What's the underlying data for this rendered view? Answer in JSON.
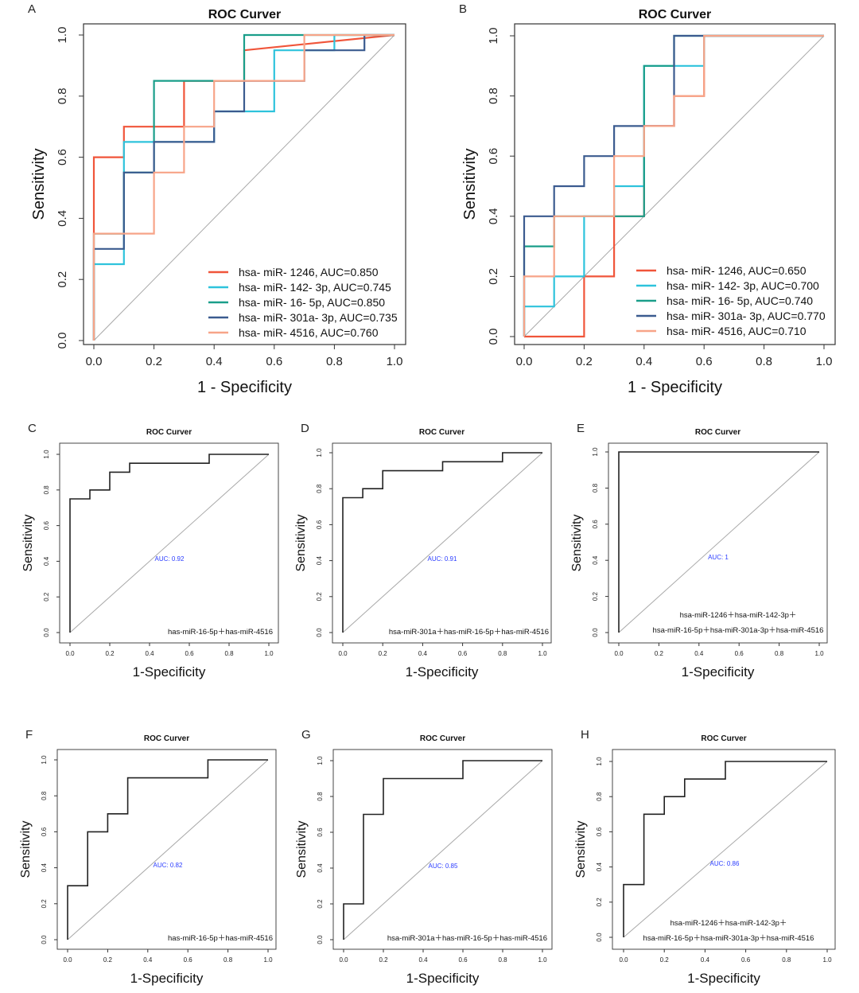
{
  "chart_data": [
    {
      "panel": "A",
      "type": "line",
      "title": "ROC Curver",
      "xlabel": "1 -  Specificity",
      "ylabel": "Sensitivity",
      "xlim": [
        0,
        1
      ],
      "ylim": [
        0,
        1
      ],
      "xticks": [
        "0.0",
        "0.2",
        "0.4",
        "0.6",
        "0.8",
        "1.0"
      ],
      "yticks": [
        "0.0",
        "0.2",
        "0.4",
        "0.6",
        "0.8",
        "1.0"
      ],
      "legend_position": "bottom-right",
      "series": [
        {
          "name": "hsa- miR- 1246, AUC=0.850",
          "color": "#f0553a",
          "x": [
            0,
            0,
            0.1,
            0.1,
            0.3,
            0.3,
            0.5,
            0.5,
            1
          ],
          "y": [
            0,
            0.6,
            0.6,
            0.7,
            0.7,
            0.85,
            0.85,
            0.95,
            1
          ]
        },
        {
          "name": "hsa- miR- 142- 3p, AUC=0.745",
          "color": "#2ec3dc",
          "x": [
            0,
            0,
            0.1,
            0.1,
            0.4,
            0.4,
            0.6,
            0.6,
            0.8,
            0.8,
            1
          ],
          "y": [
            0,
            0.25,
            0.25,
            0.65,
            0.65,
            0.75,
            0.75,
            0.95,
            0.95,
            1,
            1
          ]
        },
        {
          "name": "hsa- miR- 16- 5p, AUC=0.850",
          "color": "#1a9e8a",
          "x": [
            0,
            0,
            0.1,
            0.1,
            0.2,
            0.2,
            0.5,
            0.5,
            1
          ],
          "y": [
            0,
            0.35,
            0.35,
            0.55,
            0.55,
            0.85,
            0.85,
            1,
            1
          ]
        },
        {
          "name": "hsa- miR- 301a- 3p, AUC=0.735",
          "color": "#3b5b8f",
          "x": [
            0,
            0,
            0.1,
            0.1,
            0.2,
            0.2,
            0.4,
            0.4,
            0.5,
            0.5,
            0.7,
            0.7,
            0.9,
            0.9,
            1
          ],
          "y": [
            0,
            0.3,
            0.3,
            0.55,
            0.55,
            0.65,
            0.65,
            0.75,
            0.75,
            0.85,
            0.85,
            0.95,
            0.95,
            1,
            1
          ]
        },
        {
          "name": "hsa- miR- 4516, AUC=0.760",
          "color": "#f7a488",
          "x": [
            0,
            0,
            0.2,
            0.2,
            0.3,
            0.3,
            0.4,
            0.4,
            0.7,
            0.7,
            1
          ],
          "y": [
            0,
            0.35,
            0.35,
            0.55,
            0.55,
            0.7,
            0.7,
            0.85,
            0.85,
            1,
            1
          ]
        }
      ]
    },
    {
      "panel": "B",
      "type": "line",
      "title": "ROC Curver",
      "xlabel": "1 -  Specificity",
      "ylabel": "Sensitivity",
      "xlim": [
        0,
        1
      ],
      "ylim": [
        0,
        1
      ],
      "xticks": [
        "0.0",
        "0.2",
        "0.4",
        "0.6",
        "0.8",
        "1.0"
      ],
      "yticks": [
        "0.0",
        "0.2",
        "0.4",
        "0.6",
        "0.8",
        "1.0"
      ],
      "legend_position": "bottom-right",
      "series": [
        {
          "name": "hsa- miR- 1246, AUC=0.650",
          "color": "#f0553a",
          "x": [
            0,
            0.2,
            0.2,
            0.3,
            0.3,
            0.4,
            0.4,
            0.5,
            0.5,
            0.6,
            0.6,
            1
          ],
          "y": [
            0,
            0,
            0.2,
            0.2,
            0.4,
            0.4,
            0.7,
            0.7,
            0.8,
            0.8,
            1,
            1
          ]
        },
        {
          "name": "hsa- miR- 142- 3p, AUC=0.700",
          "color": "#2ec3dc",
          "x": [
            0,
            0,
            0.1,
            0.1,
            0.2,
            0.2,
            0.3,
            0.3,
            0.4,
            0.4,
            0.5,
            0.5,
            0.6,
            0.6,
            1
          ],
          "y": [
            0,
            0.1,
            0.1,
            0.2,
            0.2,
            0.4,
            0.4,
            0.5,
            0.5,
            0.9,
            0.9,
            0.9,
            0.9,
            1,
            1
          ]
        },
        {
          "name": "hsa- miR- 16- 5p, AUC=0.740",
          "color": "#1a9e8a",
          "x": [
            0,
            0,
            0.1,
            0.1,
            0.3,
            0.3,
            0.4,
            0.4,
            0.5,
            0.5,
            0.6,
            1
          ],
          "y": [
            0,
            0.3,
            0.3,
            0.4,
            0.4,
            0.4,
            0.4,
            0.9,
            0.9,
            1,
            1,
            1
          ]
        },
        {
          "name": "hsa- miR- 301a- 3p, AUC=0.770",
          "color": "#3b5b8f",
          "x": [
            0,
            0,
            0.1,
            0.1,
            0.2,
            0.2,
            0.3,
            0.3,
            0.4,
            0.4,
            0.5,
            0.5,
            1
          ],
          "y": [
            0,
            0.4,
            0.4,
            0.5,
            0.5,
            0.6,
            0.6,
            0.7,
            0.7,
            0.7,
            0.7,
            1,
            1
          ]
        },
        {
          "name": "hsa- miR- 4516, AUC=0.710",
          "color": "#f7a488",
          "x": [
            0,
            0,
            0.1,
            0.1,
            0.3,
            0.3,
            0.4,
            0.4,
            0.5,
            0.5,
            0.6,
            0.6,
            1
          ],
          "y": [
            0,
            0.2,
            0.2,
            0.4,
            0.4,
            0.6,
            0.6,
            0.7,
            0.7,
            0.8,
            0.8,
            1,
            1
          ]
        }
      ]
    },
    {
      "panel": "C",
      "type": "line",
      "title": "ROC Curver",
      "xlabel": "1-Specificity",
      "ylabel": "Sensitivity",
      "xticks": [
        "0.0",
        "0.2",
        "0.4",
        "0.6",
        "0.8",
        "1.0"
      ],
      "yticks": [
        "0.0",
        "0.2",
        "0.4",
        "0.6",
        "0.8",
        "1.0"
      ],
      "auc_label": "AUC: 0.92",
      "annotation": [
        "has-miR-16-5p＋has-miR-4516"
      ],
      "series": [
        {
          "color": "#222222",
          "x": [
            0,
            0,
            0.1,
            0.1,
            0.2,
            0.2,
            0.3,
            0.3,
            0.7,
            0.7,
            1
          ],
          "y": [
            0,
            0.75,
            0.75,
            0.8,
            0.8,
            0.9,
            0.9,
            0.95,
            0.95,
            1,
            1
          ]
        }
      ]
    },
    {
      "panel": "D",
      "type": "line",
      "title": "ROC Curver",
      "xlabel": "1-Specificity",
      "ylabel": "Sensitivity",
      "xticks": [
        "0.0",
        "0.2",
        "0.4",
        "0.6",
        "0.8",
        "1.0"
      ],
      "yticks": [
        "0.0",
        "0.2",
        "0.4",
        "0.6",
        "0.8",
        "1.0"
      ],
      "auc_label": "AUC: 0.91",
      "annotation": [
        "hsa-miR-301a＋has-miR-16-5p＋has-miR-4516"
      ],
      "series": [
        {
          "color": "#222222",
          "x": [
            0,
            0,
            0.1,
            0.1,
            0.2,
            0.2,
            0.5,
            0.5,
            0.8,
            0.8,
            1
          ],
          "y": [
            0,
            0.75,
            0.75,
            0.8,
            0.8,
            0.9,
            0.9,
            0.95,
            0.95,
            1,
            1
          ]
        }
      ]
    },
    {
      "panel": "E",
      "type": "line",
      "title": "ROC Curver",
      "xlabel": "1-Specificity",
      "ylabel": "Sensitivity",
      "xticks": [
        "0.0",
        "0.2",
        "0.4",
        "0.6",
        "0.8",
        "1.0"
      ],
      "yticks": [
        "0.0",
        "0.2",
        "0.4",
        "0.6",
        "0.8",
        "1.0"
      ],
      "auc_label": "AUC: 1",
      "annotation": [
        "hsa-miR-1246＋hsa-miR-142-3p＋",
        "hsa-miR-16-5p＋hsa-miR-301a-3p＋hsa-miR-4516"
      ],
      "series": [
        {
          "color": "#222222",
          "x": [
            0,
            0,
            1
          ],
          "y": [
            0,
            1,
            1
          ]
        }
      ]
    },
    {
      "panel": "F",
      "type": "line",
      "title": "ROC Curver",
      "xlabel": "1-Specificity",
      "ylabel": "Sensitivity",
      "xticks": [
        "0.0",
        "0.2",
        "0.4",
        "0.6",
        "0.8",
        "1.0"
      ],
      "yticks": [
        "0.0",
        "0.2",
        "0.4",
        "0.6",
        "0.8",
        "1.0"
      ],
      "auc_label": "AUC: 0.82",
      "annotation": [
        "has-miR-16-5p＋has-miR-4516"
      ],
      "series": [
        {
          "color": "#222222",
          "x": [
            0,
            0,
            0.1,
            0.1,
            0.2,
            0.2,
            0.3,
            0.3,
            0.7,
            0.7,
            1
          ],
          "y": [
            0,
            0.3,
            0.3,
            0.6,
            0.6,
            0.7,
            0.7,
            0.9,
            0.9,
            1,
            1
          ]
        }
      ]
    },
    {
      "panel": "G",
      "type": "line",
      "title": "ROC Curver",
      "xlabel": "1-Specificity",
      "ylabel": "Sensitivity",
      "xticks": [
        "0.0",
        "0.2",
        "0.4",
        "0.6",
        "0.8",
        "1.0"
      ],
      "yticks": [
        "0.0",
        "0.2",
        "0.4",
        "0.6",
        "0.8",
        "1.0"
      ],
      "auc_label": "AUC: 0.85",
      "annotation": [
        "hsa-miR-301a＋has-miR-16-5p＋has-miR-4516"
      ],
      "series": [
        {
          "color": "#222222",
          "x": [
            0,
            0,
            0.1,
            0.1,
            0.2,
            0.2,
            0.6,
            0.6,
            1
          ],
          "y": [
            0,
            0.2,
            0.2,
            0.7,
            0.7,
            0.9,
            0.9,
            1,
            1
          ]
        }
      ]
    },
    {
      "panel": "H",
      "type": "line",
      "title": "ROC Curver",
      "xlabel": "1-Specificity",
      "ylabel": "Sensitivity",
      "xticks": [
        "0.0",
        "0.2",
        "0.4",
        "0.6",
        "0.8",
        "1.0"
      ],
      "yticks": [
        "0.0",
        "0.2",
        "0.4",
        "0.6",
        "0.8",
        "1.0"
      ],
      "auc_label": "AUC: 0.86",
      "annotation": [
        "hsa-miR-1246＋hsa-miR-142-3p＋",
        "hsa-miR-16-5p＋hsa-miR-301a-3p＋hsa-miR-4516"
      ],
      "series": [
        {
          "color": "#222222",
          "x": [
            0,
            0,
            0.1,
            0.1,
            0.2,
            0.2,
            0.3,
            0.3,
            0.5,
            0.5,
            1
          ],
          "y": [
            0,
            0.3,
            0.3,
            0.7,
            0.7,
            0.8,
            0.8,
            0.9,
            0.9,
            1,
            1
          ]
        }
      ]
    }
  ]
}
